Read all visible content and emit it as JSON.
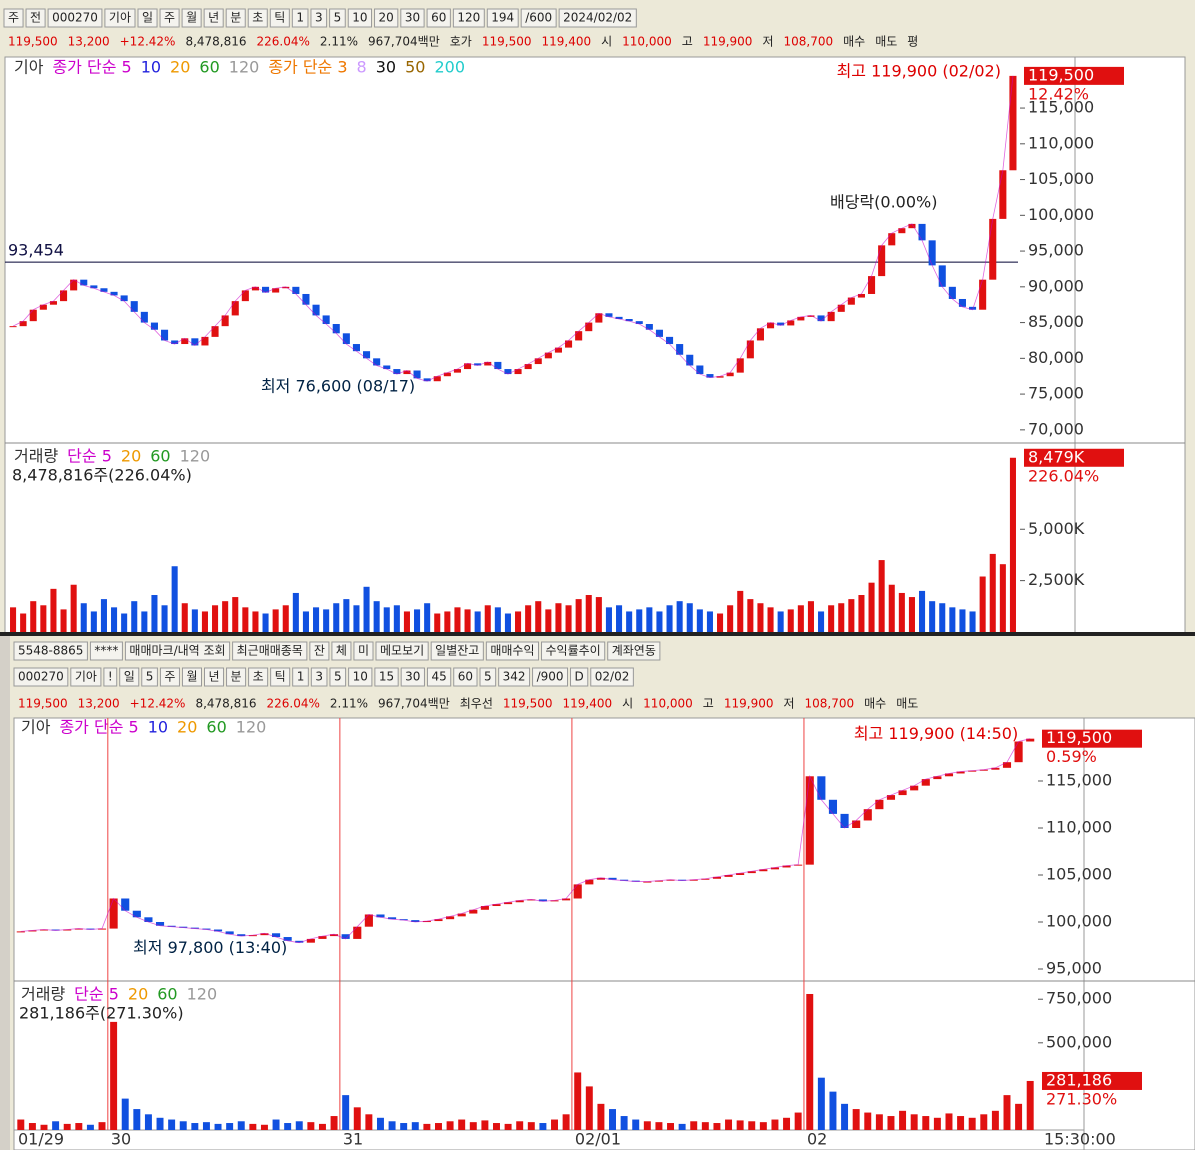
{
  "window1": {
    "toolbar": [
      "주",
      "전",
      "000270",
      "기아",
      "일",
      "주",
      "월",
      "년",
      "분",
      "초",
      "틱",
      "1",
      "3",
      "5",
      "10",
      "20",
      "30",
      "60",
      "120",
      "194",
      "/600",
      "2024/02/02"
    ],
    "quote": [
      {
        "text": "119,500",
        "color": "#d00"
      },
      {
        "text": "13,200",
        "color": "#d00"
      },
      {
        "text": "+12.42%",
        "color": "#d00"
      },
      {
        "text": "8,478,816",
        "color": "#222"
      },
      {
        "text": "226.04%",
        "color": "#d00"
      },
      {
        "text": "2.11%",
        "color": "#222"
      },
      {
        "text": "967,704백만",
        "color": "#222"
      },
      {
        "text": "호가",
        "color": "#222"
      },
      {
        "text": "119,500",
        "color": "#d00"
      },
      {
        "text": "119,400",
        "color": "#d00"
      },
      {
        "text": "시",
        "color": "#222"
      },
      {
        "text": "110,000",
        "color": "#d00"
      },
      {
        "text": "고",
        "color": "#222"
      },
      {
        "text": "119,900",
        "color": "#d00"
      },
      {
        "text": "저",
        "color": "#222"
      },
      {
        "text": "108,700",
        "color": "#d00"
      },
      {
        "text": "매수",
        "color": "#222"
      },
      {
        "text": "매도",
        "color": "#222"
      },
      {
        "text": "평",
        "color": "#222"
      }
    ],
    "daily": {
      "type": "candlestick",
      "legend": [
        {
          "text": "기아",
          "color": "#333"
        },
        {
          "text": "종가 단순 5",
          "color": "#c0c"
        },
        {
          "text": "10",
          "color": "#22d"
        },
        {
          "text": "20",
          "color": "#e90"
        },
        {
          "text": "60",
          "color": "#292"
        },
        {
          "text": "120",
          "color": "#999"
        },
        {
          "text": "종가 단순 3",
          "color": "#e70"
        },
        {
          "text": "8",
          "color": "#c9f"
        },
        {
          "text": "30",
          "color": "#111"
        },
        {
          "text": "50",
          "color": "#960"
        },
        {
          "text": "200",
          "color": "#2cc"
        }
      ],
      "close": [
        84500,
        85200,
        86800,
        87500,
        88000,
        89500,
        91000,
        90200,
        89800,
        89300,
        88800,
        88000,
        86500,
        85000,
        84000,
        82500,
        82000,
        82800,
        81800,
        83000,
        84500,
        86000,
        88000,
        89500,
        90000,
        89200,
        89800,
        90000,
        89000,
        87500,
        86000,
        84800,
        83500,
        82000,
        81000,
        80000,
        79000,
        78500,
        77800,
        78300,
        77200,
        76800,
        77500,
        78000,
        78500,
        79300,
        79000,
        79500,
        78500,
        77800,
        78500,
        79200,
        80000,
        80800,
        81500,
        82500,
        83800,
        85000,
        86300,
        85800,
        85500,
        85200,
        84800,
        84000,
        83000,
        82000,
        80500,
        79000,
        77800,
        77300,
        77500,
        78000,
        80000,
        82500,
        84200,
        85000,
        84600,
        85300,
        85800,
        86000,
        85200,
        86500,
        87500,
        88500,
        89000,
        91500,
        95800,
        97500,
        98200,
        98800,
        96500,
        93000,
        90000,
        88300,
        87200,
        86800,
        91000,
        99500,
        106300,
        119500
      ],
      "ylim": [
        68300,
        122000
      ],
      "yticks": [
        {
          "value": 70000,
          "label": "70,000"
        },
        {
          "value": 75000,
          "label": "75,000"
        },
        {
          "value": 80000,
          "label": "80,000"
        },
        {
          "value": 85000,
          "label": "85,000"
        },
        {
          "value": 90000,
          "label": "90,000"
        },
        {
          "value": 95000,
          "label": "95,000"
        },
        {
          "value": 100000,
          "label": "100,000"
        },
        {
          "value": 105000,
          "label": "105,000"
        },
        {
          "value": 110000,
          "label": "110,000"
        },
        {
          "value": 115000,
          "label": "115,000"
        }
      ],
      "ref_line": {
        "value": 93454,
        "label": "93,454"
      },
      "high_note": "최고 119,900 (02/02)",
      "low_note": "최저 76,600 (08/17)",
      "dividend_note": "배당락(0.00%)",
      "last_label": "119,500",
      "last_rate": "12.42%",
      "volume": {
        "legend": [
          {
            "text": "거래량",
            "color": "#333"
          },
          {
            "text": "단순 5",
            "color": "#c0c"
          },
          {
            "text": "20",
            "color": "#e90"
          },
          {
            "text": "60",
            "color": "#292"
          },
          {
            "text": "120",
            "color": "#999"
          }
        ],
        "info": "8,478,816주(226.04%)",
        "last_label": "8,479K",
        "last_rate": "226.04%",
        "values": [
          1200000,
          900000,
          1500000,
          1300000,
          2100000,
          1100000,
          2300000,
          1400000,
          1000000,
          1600000,
          1200000,
          900000,
          1500000,
          1000000,
          1800000,
          1300000,
          3200000,
          1400000,
          1100000,
          1000000,
          1300000,
          1500000,
          1700000,
          1200000,
          1000000,
          900000,
          1100000,
          1300000,
          1900000,
          1000000,
          1200000,
          1100000,
          1400000,
          1600000,
          1300000,
          2200000,
          1500000,
          1200000,
          1300000,
          1000000,
          1100000,
          1400000,
          900000,
          1000000,
          1200000,
          1100000,
          1000000,
          1300000,
          1200000,
          900000,
          1000000,
          1300000,
          1500000,
          1100000,
          1400000,
          1300000,
          1600000,
          1800000,
          1700000,
          1200000,
          1300000,
          1000000,
          1100000,
          1200000,
          1000000,
          1300000,
          1500000,
          1400000,
          1100000,
          1000000,
          900000,
          1300000,
          2000000,
          1600000,
          1400000,
          1200000,
          1000000,
          1100000,
          1300000,
          1500000,
          1000000,
          1300000,
          1400000,
          1600000,
          1800000,
          2400000,
          3500000,
          2300000,
          1900000,
          1700000,
          2000000,
          1500000,
          1400000,
          1200000,
          1100000,
          1000000,
          2700000,
          3800000,
          3300000,
          8478816
        ],
        "ylim": [
          0,
          9100000
        ],
        "yticks": [
          {
            "value": 2500000,
            "label": "2,500K"
          },
          {
            "value": 5000000,
            "label": "5,000K"
          }
        ]
      }
    }
  },
  "window2": {
    "toolbar1": [
      "5548-8865",
      "****",
      "매매마크/내역 조회",
      "최근매매종목",
      "잔",
      "체",
      "미",
      "메모보기",
      "일별잔고",
      "매매수익",
      "수익률추이",
      "계좌연동"
    ],
    "toolbar2": [
      "000270",
      "기아",
      "!",
      "일",
      "5",
      "주",
      "월",
      "년",
      "분",
      "초",
      "틱",
      "1",
      "3",
      "5",
      "10",
      "15",
      "30",
      "45",
      "60",
      "5",
      "342",
      "/900",
      "D",
      "02/02"
    ],
    "quote": [
      {
        "text": "119,500",
        "color": "#d00"
      },
      {
        "text": "13,200",
        "color": "#d00"
      },
      {
        "text": "+12.42%",
        "color": "#d00"
      },
      {
        "text": "8,478,816",
        "color": "#222"
      },
      {
        "text": "226.04%",
        "color": "#d00"
      },
      {
        "text": "2.11%",
        "color": "#222"
      },
      {
        "text": "967,704백만",
        "color": "#222"
      },
      {
        "text": "최우선",
        "color": "#222"
      },
      {
        "text": "119,500",
        "color": "#d00"
      },
      {
        "text": "119,400",
        "color": "#d00"
      },
      {
        "text": "시",
        "color": "#222"
      },
      {
        "text": "110,000",
        "color": "#d00"
      },
      {
        "text": "고",
        "color": "#222"
      },
      {
        "text": "119,900",
        "color": "#d00"
      },
      {
        "text": "저",
        "color": "#222"
      },
      {
        "text": "108,700",
        "color": "#d00"
      },
      {
        "text": "매수",
        "color": "#222"
      },
      {
        "text": "매도",
        "color": "#222"
      }
    ],
    "intraday": {
      "type": "candlestick",
      "legend": [
        {
          "text": "기아",
          "color": "#333"
        },
        {
          "text": "종가 단순 5",
          "color": "#c0c"
        },
        {
          "text": "10",
          "color": "#22d"
        },
        {
          "text": "20",
          "color": "#e90"
        },
        {
          "text": "60",
          "color": "#292"
        },
        {
          "text": "120",
          "color": "#999"
        }
      ],
      "close": [
        99000,
        99100,
        99200,
        99100,
        99200,
        99300,
        99200,
        99300,
        102500,
        101200,
        100500,
        100000,
        99600,
        99500,
        99400,
        99300,
        99200,
        99000,
        98700,
        98500,
        98600,
        98800,
        98400,
        98000,
        97800,
        98200,
        98500,
        98700,
        98200,
        99500,
        100800,
        100500,
        100300,
        100200,
        100000,
        100100,
        100300,
        100600,
        100900,
        101300,
        101700,
        101900,
        102100,
        102300,
        102400,
        102200,
        102300,
        102500,
        104000,
        104500,
        104700,
        104500,
        104400,
        104300,
        104300,
        104400,
        104500,
        104400,
        104500,
        104600,
        104800,
        105000,
        105200,
        105400,
        105600,
        105800,
        106000,
        106100,
        115500,
        113000,
        111500,
        110000,
        110800,
        112000,
        113000,
        113500,
        114000,
        114500,
        115200,
        115500,
        115800,
        116000,
        116100,
        116200,
        116400,
        117000,
        119200,
        119500
      ],
      "ylim": [
        93830,
        121700
      ],
      "yticks": [
        {
          "value": 95000,
          "label": "95,000"
        },
        {
          "value": 100000,
          "label": "100,000"
        },
        {
          "value": 105000,
          "label": "105,000"
        },
        {
          "value": 110000,
          "label": "110,000"
        },
        {
          "value": 115000,
          "label": "115,000"
        }
      ],
      "xticks": [
        {
          "value": 0,
          "label": "01/29"
        },
        {
          "value": 8,
          "label": "30"
        },
        {
          "value": 28,
          "label": "31"
        },
        {
          "value": 48,
          "label": "02/01"
        },
        {
          "value": 68,
          "label": "02"
        }
      ],
      "close_time": "15:30:00",
      "high_note": "최고 119,900 (14:50)",
      "low_note": "최저 97,800 (13:40)",
      "last_label": "119,500",
      "last_rate": "0.59%",
      "volume": {
        "legend": [
          {
            "text": "거래량",
            "color": "#333"
          },
          {
            "text": "단순 5",
            "color": "#c0c"
          },
          {
            "text": "20",
            "color": "#e90"
          },
          {
            "text": "60",
            "color": "#292"
          },
          {
            "text": "120",
            "color": "#999"
          }
        ],
        "info": "281,186주(271.30%)",
        "last_label": "281,186",
        "last_rate": "271.30%",
        "values": [
          60000,
          40000,
          30000,
          50000,
          35000,
          40000,
          30000,
          45000,
          620000,
          180000,
          120000,
          90000,
          70000,
          60000,
          50000,
          40000,
          45000,
          35000,
          40000,
          50000,
          35000,
          30000,
          60000,
          40000,
          50000,
          45000,
          35000,
          80000,
          200000,
          130000,
          90000,
          70000,
          50000,
          40000,
          45000,
          35000,
          40000,
          50000,
          60000,
          45000,
          55000,
          40000,
          35000,
          50000,
          45000,
          40000,
          60000,
          90000,
          330000,
          250000,
          150000,
          120000,
          80000,
          60000,
          50000,
          45000,
          40000,
          35000,
          50000,
          45000,
          40000,
          60000,
          55000,
          50000,
          45000,
          60000,
          70000,
          100000,
          780000,
          300000,
          220000,
          150000,
          120000,
          100000,
          90000,
          80000,
          110000,
          90000,
          80000,
          70000,
          95000,
          80000,
          70000,
          90000,
          110000,
          200000,
          150000,
          281186
        ],
        "ylim": [
          0,
          843000
        ],
        "yticks": [
          {
            "value": 500000,
            "label": "500,000"
          },
          {
            "value": 750000,
            "label": "750,000"
          }
        ]
      }
    }
  }
}
